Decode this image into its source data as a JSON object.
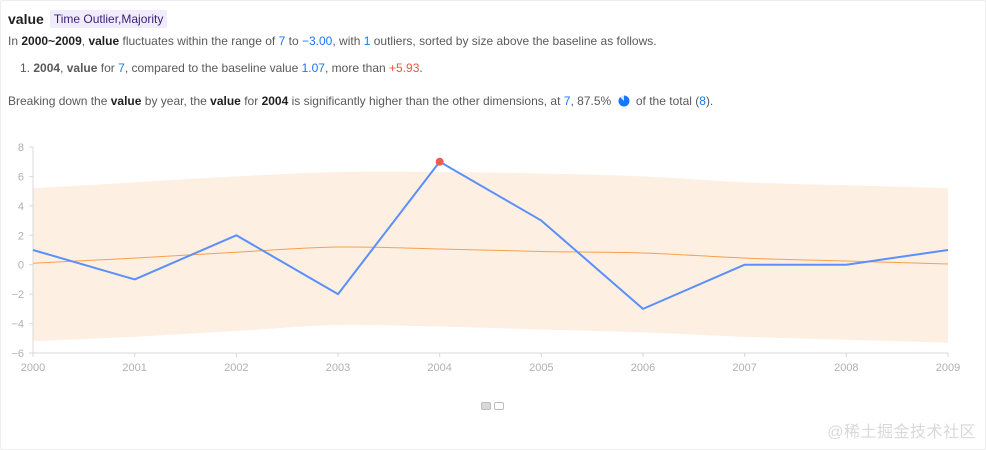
{
  "header": {
    "title": "value",
    "tag": "Time Outlier,Majority"
  },
  "summary": {
    "p1": "In",
    "range_text": "2000~2009",
    "p2": ",",
    "measure": "value",
    "p3": "fluctuates within the range of",
    "max": "7",
    "p4": "to",
    "min": "−3.00",
    "p5": ", with",
    "outlier_count": "1",
    "p6": "outliers, sorted by size above the baseline as follows."
  },
  "outliers": [
    {
      "index": "1.",
      "year": "2004",
      "sep": ",",
      "measure": "value",
      "for": "for",
      "value": "7",
      "compared": ", compared to the baseline value",
      "baseline": "1.07",
      "more": ", more than",
      "diff": "+5.93",
      "end": "."
    }
  ],
  "breakdown": {
    "p1": "Breaking down the",
    "measure": "value",
    "p2": "by year, the",
    "measure2": "value",
    "p3": "for",
    "year": "2004",
    "p4": "is significantly higher than the other dimensions, at",
    "value": "7",
    "p5": ",",
    "percent": "87.5%",
    "p6": "of the total (",
    "total": "8",
    "p7": ")."
  },
  "colors": {
    "line": "#5b8ff9",
    "baseline": "#f7a04b",
    "band": "#feefe3",
    "outlier": "#ef5b4c",
    "accent": "#1677ff"
  },
  "chart_data": {
    "type": "line",
    "x": [
      "2000",
      "2001",
      "2002",
      "2003",
      "2004",
      "2005",
      "2006",
      "2007",
      "2008",
      "2009"
    ],
    "series": [
      {
        "values": [
          1,
          -1,
          2,
          -2,
          7,
          3,
          -3,
          0,
          0,
          1
        ]
      }
    ],
    "baseline": [
      0.1,
      0.45,
      0.85,
      1.2,
      1.07,
      0.9,
      0.8,
      0.45,
      0.25,
      0.05
    ],
    "band_upper": [
      5.2,
      5.6,
      6.0,
      6.3,
      6.3,
      6.2,
      6.0,
      5.6,
      5.4,
      5.2
    ],
    "band_lower": [
      -5.2,
      -4.9,
      -4.5,
      -4.1,
      -4.2,
      -4.4,
      -4.6,
      -4.9,
      -5.1,
      -5.3
    ],
    "outlier_index": 4,
    "yticks": [
      "8",
      "6",
      "4",
      "2",
      "0",
      "−2",
      "−4",
      "−6"
    ],
    "ylim": [
      -6,
      8
    ],
    "grid": false,
    "legend": "none"
  }
}
